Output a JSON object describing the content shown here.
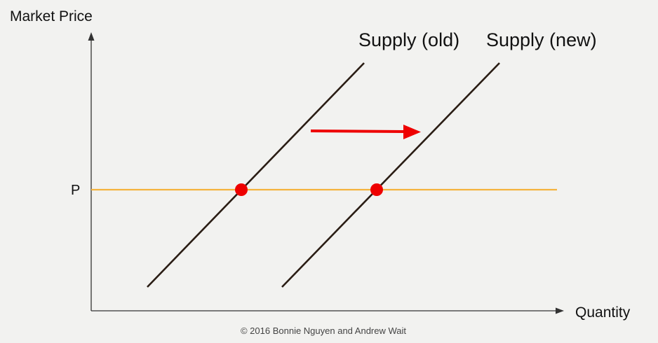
{
  "y_axis_label": "Market Price",
  "x_axis_label": "Quantity",
  "price_tick_label": "P",
  "supply_old_label": "Supply (old)",
  "supply_new_label": "Supply (new)",
  "shift_direction": "right",
  "copyright": "© 2016 Bonnie Nguyen and Andrew Wait",
  "colors": {
    "background": "#f2f2f0",
    "supply_lines": "#2a1d14",
    "price_line": "#f5b33c",
    "equilibrium_points": "#ee0000",
    "shift_arrow": "#ee0000",
    "axes": "#333333"
  }
}
